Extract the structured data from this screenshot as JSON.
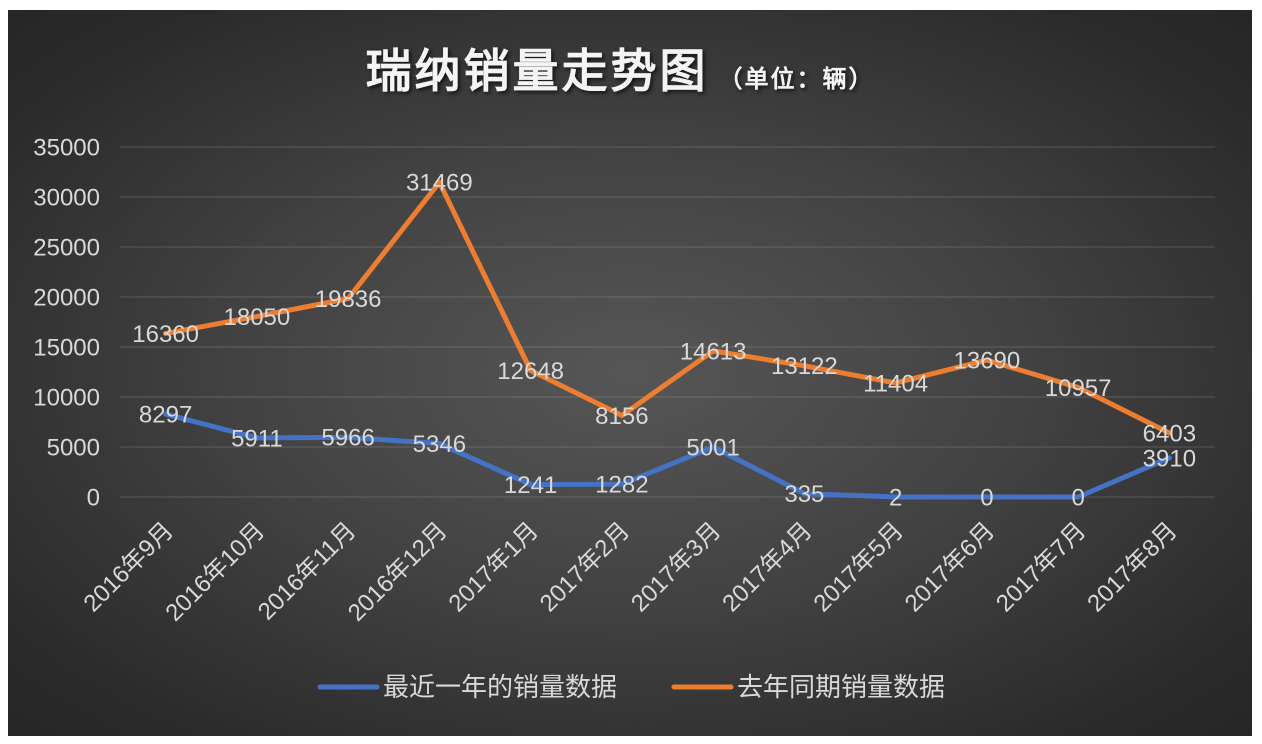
{
  "chart_data": {
    "type": "line",
    "title": "瑞纳销量走势图",
    "title_unit": "（单位：辆）",
    "xlabel": "",
    "ylabel": "",
    "categories": [
      "2016年9月",
      "2016年10月",
      "2016年11月",
      "2016年12月",
      "2017年1月",
      "2017年2月",
      "2017年3月",
      "2017年4月",
      "2017年5月",
      "2017年6月",
      "2017年7月",
      "2017年8月"
    ],
    "series": [
      {
        "name": "最近一年的销量数据",
        "color": "#4472C4",
        "values": [
          8297,
          5911,
          5966,
          5346,
          1241,
          1282,
          5001,
          335,
          2,
          0,
          0,
          3910
        ]
      },
      {
        "name": "去年同期销量数据",
        "color": "#ED7D31",
        "values": [
          16360,
          18050,
          19836,
          31469,
          12648,
          8156,
          14613,
          13122,
          11404,
          13690,
          10957,
          6403
        ]
      }
    ],
    "yticks": [
      0,
      5000,
      10000,
      15000,
      20000,
      25000,
      30000,
      35000
    ],
    "ylim": [
      0,
      35000
    ],
    "grid": true,
    "data_labels": true,
    "legend": "bottom"
  },
  "theme": {
    "background": "#3f3f3f",
    "text_color": "#D9D9D9",
    "title_color": "#F4F4F4"
  }
}
